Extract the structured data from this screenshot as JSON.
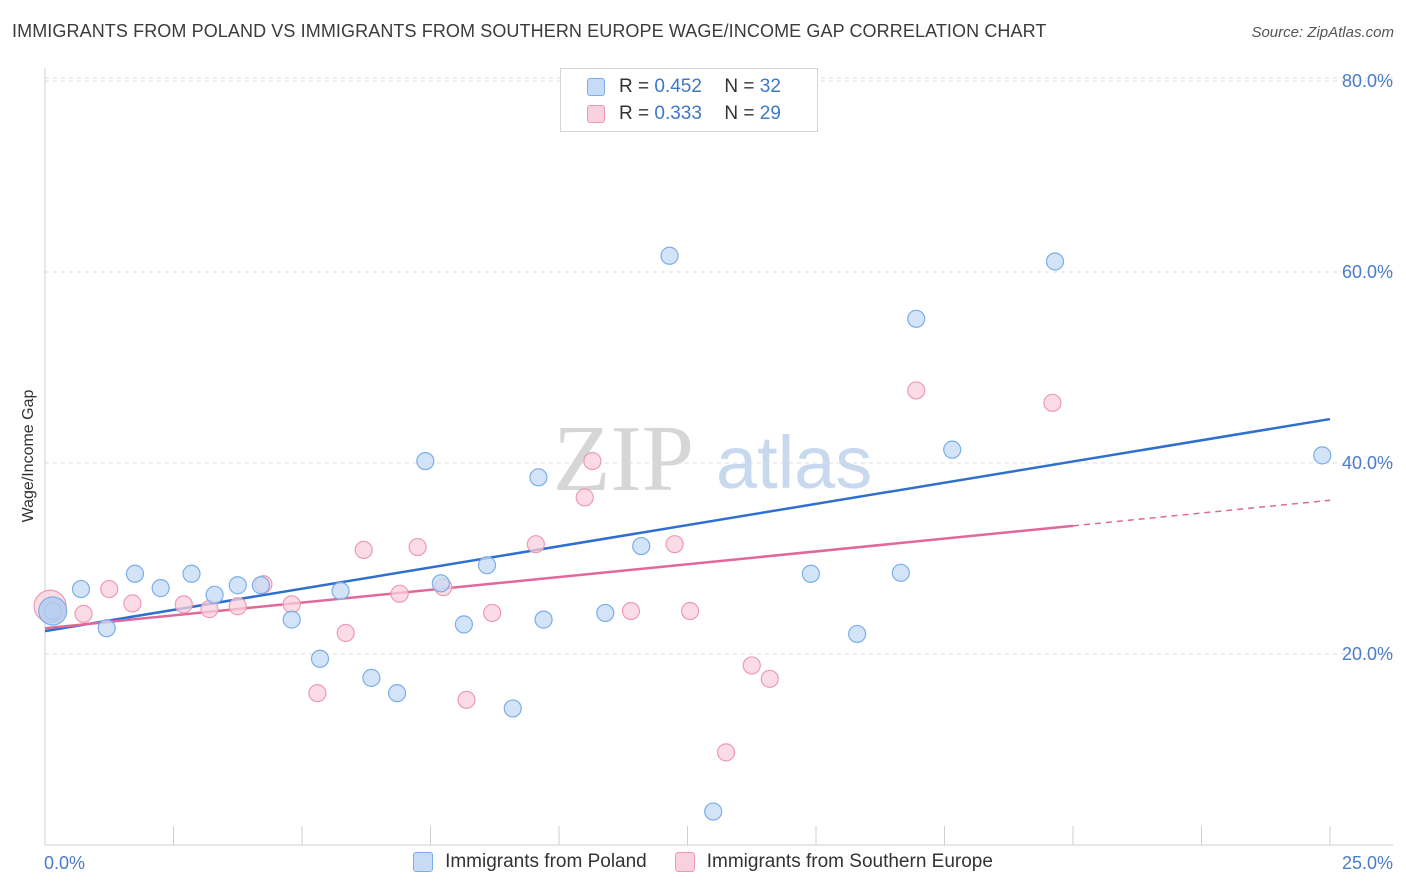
{
  "header": {
    "title": "IMMIGRANTS FROM POLAND VS IMMIGRANTS FROM SOUTHERN EUROPE WAGE/INCOME GAP CORRELATION CHART",
    "source": "Source: ZipAtlas.com"
  },
  "watermark": {
    "zip": "ZIP",
    "atlas": "atlas"
  },
  "legend": {
    "r_label": "R =",
    "n_label": "N =",
    "series": [
      {
        "r": "0.452",
        "n": "32"
      },
      {
        "r": "0.333",
        "n": "29"
      }
    ]
  },
  "chart_data": {
    "type": "scatter",
    "title": "IMMIGRANTS FROM POLAND VS IMMIGRANTS FROM SOUTHERN EUROPE WAGE/INCOME GAP CORRELATION CHART",
    "xlabel": "",
    "ylabel": "Wage/Income Gap",
    "xlim": [
      0,
      25
    ],
    "ylim": [
      0,
      80
    ],
    "x_tick_labels": [
      "0.0%",
      "25.0%"
    ],
    "y_ticks": [
      20,
      40,
      60,
      80
    ],
    "y_tick_labels": [
      "20.0%",
      "40.0%",
      "60.0%",
      "80.0%"
    ],
    "grid": true,
    "legend_position": "top-center",
    "series": [
      {
        "name": "Immigrants from Poland",
        "color": "#7baee8",
        "fill": "#c5dbf6",
        "line_color": "#2f6fd0",
        "r": 0.452,
        "n": 32,
        "trend": {
          "x0": 0,
          "y0": 22.4,
          "x1": 25,
          "y1": 44.6,
          "dashed_from": null
        },
        "points": [
          {
            "x": 0.15,
            "y": 24.5
          },
          {
            "x": 0.7,
            "y": 26.8
          },
          {
            "x": 1.2,
            "y": 22.7
          },
          {
            "x": 1.75,
            "y": 28.4
          },
          {
            "x": 2.25,
            "y": 26.9
          },
          {
            "x": 2.85,
            "y": 28.4
          },
          {
            "x": 3.3,
            "y": 26.2
          },
          {
            "x": 3.75,
            "y": 27.2
          },
          {
            "x": 4.2,
            "y": 27.2
          },
          {
            "x": 4.8,
            "y": 23.6
          },
          {
            "x": 5.35,
            "y": 19.5
          },
          {
            "x": 5.75,
            "y": 26.6
          },
          {
            "x": 6.35,
            "y": 17.5
          },
          {
            "x": 6.85,
            "y": 15.9
          },
          {
            "x": 7.4,
            "y": 40.2
          },
          {
            "x": 7.7,
            "y": 27.4
          },
          {
            "x": 8.15,
            "y": 23.1
          },
          {
            "x": 8.6,
            "y": 29.3
          },
          {
            "x": 9.1,
            "y": 14.3
          },
          {
            "x": 9.6,
            "y": 38.5
          },
          {
            "x": 9.7,
            "y": 23.6
          },
          {
            "x": 10.9,
            "y": 24.3
          },
          {
            "x": 11.6,
            "y": 31.3
          },
          {
            "x": 12.15,
            "y": 61.7
          },
          {
            "x": 13.0,
            "y": 3.5
          },
          {
            "x": 14.9,
            "y": 28.4
          },
          {
            "x": 15.8,
            "y": 22.1
          },
          {
            "x": 16.65,
            "y": 28.5
          },
          {
            "x": 16.95,
            "y": 55.1
          },
          {
            "x": 17.65,
            "y": 41.4
          },
          {
            "x": 19.65,
            "y": 61.1
          },
          {
            "x": 24.85,
            "y": 40.8
          }
        ]
      },
      {
        "name": "Immigrants from Southern Europe",
        "color": "#ee9ab5",
        "fill": "#f9d0dd",
        "line_color": "#e0689a",
        "r": 0.333,
        "n": 29,
        "trend": {
          "x0": 0,
          "y0": 22.7,
          "x1": 25,
          "y1": 36.1,
          "dashed_from": 20.0
        },
        "points": [
          {
            "x": 0.2,
            "y": 24.8
          },
          {
            "x": 0.75,
            "y": 24.2
          },
          {
            "x": 1.25,
            "y": 26.8
          },
          {
            "x": 1.7,
            "y": 25.3
          },
          {
            "x": 2.7,
            "y": 25.2
          },
          {
            "x": 3.2,
            "y": 24.7
          },
          {
            "x": 3.75,
            "y": 25.0
          },
          {
            "x": 4.25,
            "y": 27.3
          },
          {
            "x": 4.8,
            "y": 25.2
          },
          {
            "x": 5.3,
            "y": 15.9
          },
          {
            "x": 5.85,
            "y": 22.2
          },
          {
            "x": 6.2,
            "y": 30.9
          },
          {
            "x": 6.9,
            "y": 26.3
          },
          {
            "x": 7.25,
            "y": 31.2
          },
          {
            "x": 7.75,
            "y": 27.0
          },
          {
            "x": 8.2,
            "y": 15.2
          },
          {
            "x": 8.7,
            "y": 24.3
          },
          {
            "x": 9.55,
            "y": 31.5
          },
          {
            "x": 10.5,
            "y": 36.4
          },
          {
            "x": 10.65,
            "y": 40.2
          },
          {
            "x": 11.4,
            "y": 24.5
          },
          {
            "x": 12.25,
            "y": 31.5
          },
          {
            "x": 12.55,
            "y": 24.5
          },
          {
            "x": 13.25,
            "y": 9.7
          },
          {
            "x": 13.75,
            "y": 18.8
          },
          {
            "x": 14.1,
            "y": 17.4
          },
          {
            "x": 16.95,
            "y": 47.6
          },
          {
            "x": 19.6,
            "y": 46.3
          },
          {
            "x": 0.1,
            "y": 25.0,
            "big": true
          }
        ]
      }
    ]
  },
  "bottom_legend": [
    {
      "label": "Immigrants from Poland"
    },
    {
      "label": "Immigrants from Southern Europe"
    }
  ]
}
